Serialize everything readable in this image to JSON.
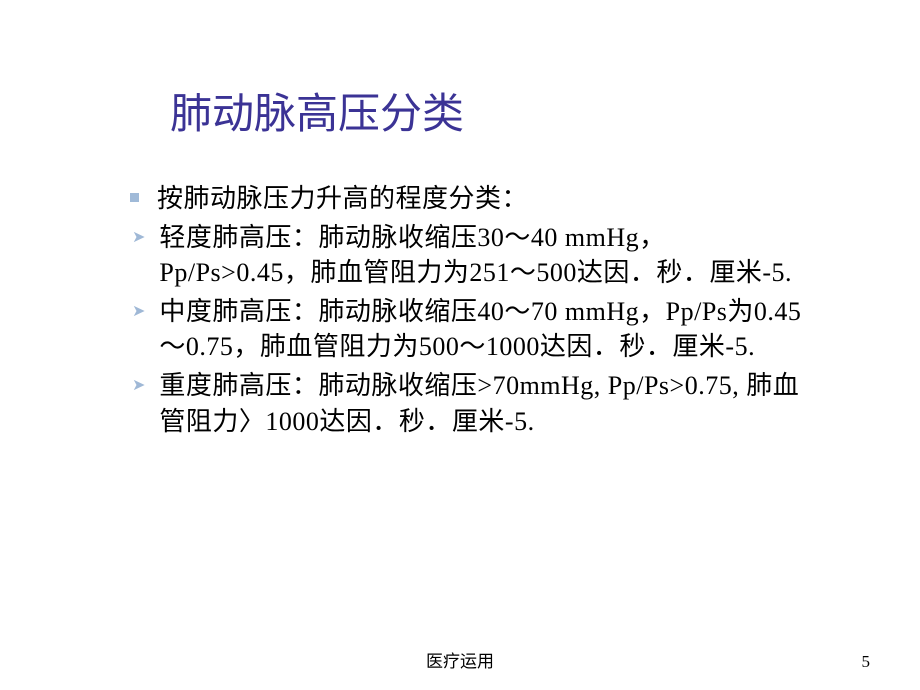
{
  "slide": {
    "title": "肺动脉高压分类",
    "items": [
      {
        "bullet_type": "square",
        "text": "按肺动脉压力升高的程度分类："
      },
      {
        "bullet_type": "arrow",
        "text": "轻度肺高压：肺动脉收缩压30～40 mmHg，Pp/Ps>0.45，肺血管阻力为251～500达因．秒．厘米-5."
      },
      {
        "bullet_type": "arrow",
        "text": "中度肺高压：肺动脉收缩压40～70 mmHg，Pp/Ps为0.45～0.75，肺血管阻力为500～1000达因．秒．厘米-5."
      },
      {
        "bullet_type": "arrow",
        "text": "重度肺高压：肺动脉收缩压>70mmHg, Pp/Ps>0.75, 肺血管阻力〉1000达因．秒．厘米-5."
      }
    ],
    "footer": "医疗运用",
    "page_number": "5"
  },
  "colors": {
    "title_color": "#3b3395",
    "bullet_color": "#a0bad8",
    "text_color": "#000000",
    "background": "#ffffff"
  }
}
